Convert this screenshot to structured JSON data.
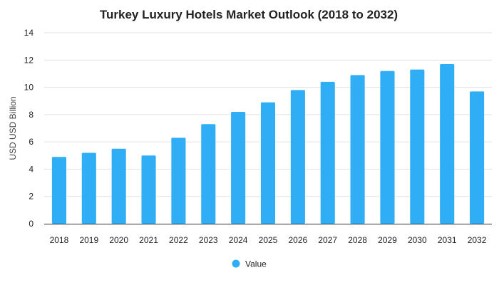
{
  "chart_data": {
    "type": "bar",
    "title": "Turkey Luxury Hotels Market Outlook (2018 to 2032)",
    "xlabel": "",
    "ylabel": "USD USD Billion",
    "ylim": [
      0,
      14
    ],
    "yticks": [
      "0",
      "2",
      "4",
      "6",
      "8",
      "10",
      "12",
      "14"
    ],
    "categories": [
      "2018",
      "2019",
      "2020",
      "2021",
      "2022",
      "2023",
      "2024",
      "2025",
      "2026",
      "2027",
      "2028",
      "2029",
      "2030",
      "2031",
      "2032"
    ],
    "series": [
      {
        "name": "Value",
        "values": [
          4.9,
          5.2,
          5.5,
          5.0,
          6.3,
          7.3,
          8.2,
          8.9,
          9.8,
          10.4,
          10.9,
          11.2,
          11.3,
          11.7,
          9.7
        ],
        "color": "#2FAEF5"
      }
    ],
    "grid": true,
    "legend_position": "bottom"
  }
}
